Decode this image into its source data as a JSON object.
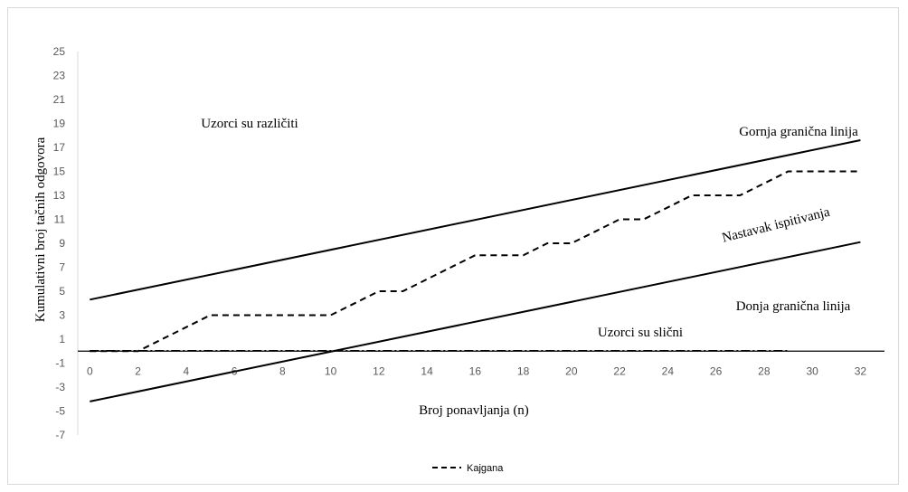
{
  "chart_data": {
    "type": "line",
    "xlabel": "Broj ponavljanja (n)",
    "ylabel": "Kumulativni broj tačnih odgovora",
    "xlim": [
      -0.5,
      33
    ],
    "ylim": [
      -7,
      25
    ],
    "x_ticks": [
      0,
      2,
      4,
      6,
      8,
      10,
      12,
      14,
      16,
      18,
      20,
      22,
      24,
      26,
      28,
      30,
      32
    ],
    "y_ticks": [
      25,
      23,
      21,
      19,
      17,
      15,
      13,
      11,
      9,
      7,
      5,
      3,
      1,
      -1,
      -3,
      -5,
      -7
    ],
    "grid": false,
    "legend_position": "bottom",
    "series": [
      {
        "name": "Kajgana",
        "style": "dashed",
        "color": "#000000",
        "points": [
          [
            0,
            0
          ],
          [
            2,
            0
          ],
          [
            3,
            1
          ],
          [
            4,
            2
          ],
          [
            5,
            3
          ],
          [
            6,
            3
          ],
          [
            7,
            3
          ],
          [
            8,
            3
          ],
          [
            9,
            3
          ],
          [
            10,
            3
          ],
          [
            11,
            4
          ],
          [
            12,
            5
          ],
          [
            13,
            5
          ],
          [
            14,
            6
          ],
          [
            15,
            7
          ],
          [
            16,
            8
          ],
          [
            17,
            8
          ],
          [
            18,
            8
          ],
          [
            19,
            9
          ],
          [
            20,
            9
          ],
          [
            21,
            10
          ],
          [
            22,
            11
          ],
          [
            23,
            11
          ],
          [
            24,
            12
          ],
          [
            25,
            13
          ],
          [
            26,
            13
          ],
          [
            27,
            13
          ],
          [
            28,
            14
          ],
          [
            29,
            15
          ],
          [
            30,
            15
          ],
          [
            31,
            15
          ],
          [
            32,
            15
          ]
        ]
      },
      {
        "style": "solid",
        "color": "#000000",
        "points": [
          [
            0,
            4.3
          ],
          [
            32,
            17.6
          ]
        ]
      },
      {
        "style": "solid",
        "color": "#000000",
        "points": [
          [
            0,
            -4.2
          ],
          [
            32,
            9.1
          ]
        ]
      },
      {
        "style": "dashdot",
        "color": "#000000",
        "points": [
          [
            0,
            0.05
          ],
          [
            29,
            0.05
          ]
        ]
      }
    ],
    "annotations": {
      "upper_region": "Uzorci su različiti",
      "upper_line": "Gornja granična linija",
      "continue_region": "Nastavak ispitivanja",
      "lower_line": "Donja granična linija",
      "lower_region": "Uzorci su slični"
    }
  }
}
